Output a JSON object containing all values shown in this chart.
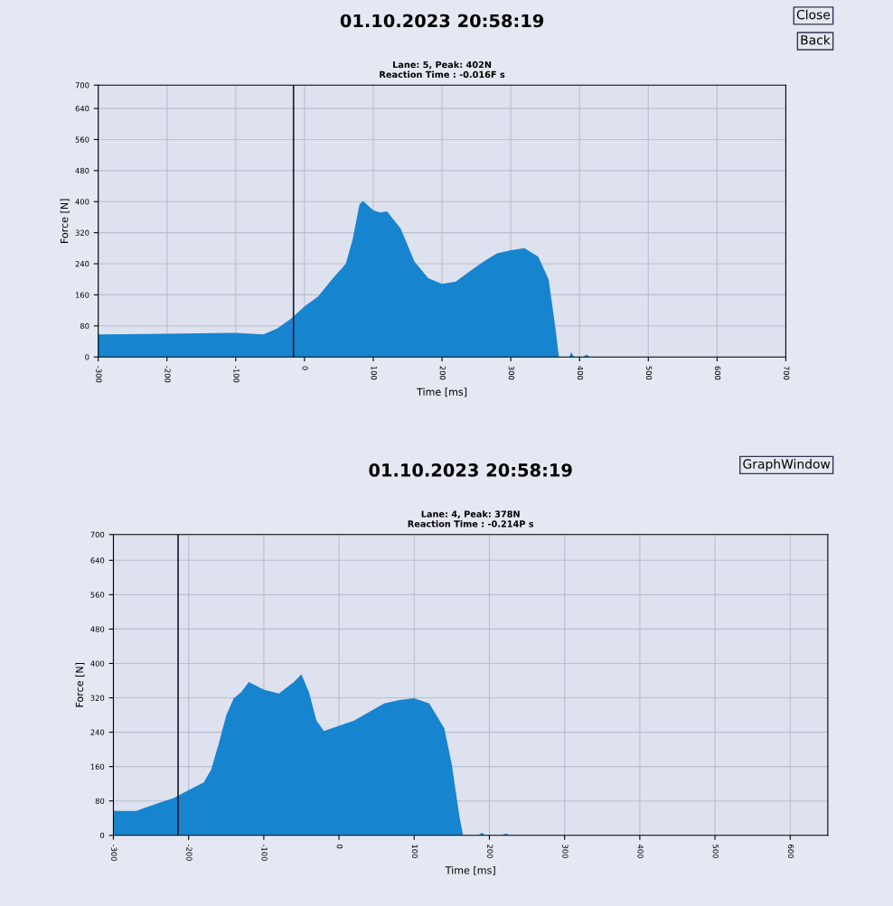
{
  "chart_data": [
    {
      "type": "area",
      "title": "01.10.2023 20:58:19",
      "subtitle": "Lane: 5, Peak: 402N\nReaction Time : -0.016F s",
      "xlabel": "Time [ms]",
      "ylabel": "Force [N]",
      "annotations": [
        "Close",
        "Back"
      ],
      "color": "#1784d0",
      "x": [
        -300,
        -200,
        -100,
        -60,
        -40,
        -20,
        0,
        20,
        40,
        60,
        70,
        80,
        85,
        100,
        110,
        120,
        140,
        160,
        180,
        200,
        220,
        240,
        260,
        280,
        300,
        320,
        340,
        355,
        365,
        370,
        380,
        385,
        388,
        392,
        400,
        405,
        410,
        415,
        430
      ],
      "values": [
        58,
        60,
        62,
        58,
        73,
        98,
        130,
        156,
        200,
        240,
        303,
        393,
        402,
        378,
        372,
        375,
        330,
        245,
        203,
        188,
        194,
        220,
        245,
        267,
        275,
        280,
        258,
        200,
        73,
        0,
        0,
        0,
        12,
        0,
        0,
        0,
        6,
        0,
        0
      ],
      "xlim": [
        -300,
        700
      ],
      "xticks": [
        -300,
        -200,
        -100,
        0,
        100,
        200,
        300,
        400,
        500,
        600,
        700
      ],
      "ylim": [
        0,
        700
      ],
      "yticks": [
        0,
        80,
        160,
        240,
        320,
        400,
        480,
        560,
        640,
        700
      ],
      "grid": true,
      "ref_lines": [
        {
          "axis": "x",
          "value": -16,
          "color": "#1c1c2a"
        }
      ]
    },
    {
      "type": "area",
      "title": "01.10.2023 20:58:19",
      "subtitle": "Lane: 4, Peak: 378N\nReaction Time : -0.214P s",
      "xlabel": "Time [ms]",
      "ylabel": "Force [N]",
      "annotations": [
        "GraphWindow"
      ],
      "color": "#1784d0",
      "x": [
        -300,
        -270,
        -240,
        -220,
        -200,
        -180,
        -170,
        -160,
        -150,
        -140,
        -130,
        -120,
        -100,
        -80,
        -60,
        -50,
        -40,
        -30,
        -20,
        0,
        20,
        40,
        60,
        80,
        100,
        120,
        140,
        150,
        160,
        165,
        180,
        185,
        190,
        195,
        215,
        222,
        228,
        240
      ],
      "values": [
        57,
        57,
        75,
        87,
        105,
        123,
        153,
        213,
        279,
        319,
        333,
        357,
        339,
        330,
        357,
        375,
        333,
        267,
        243,
        255,
        267,
        287,
        307,
        315,
        319,
        307,
        249,
        165,
        45,
        0,
        0,
        0,
        6,
        0,
        0,
        4,
        0,
        0
      ],
      "xlim": [
        -300,
        650
      ],
      "xticks": [
        -300,
        -200,
        -100,
        0,
        100,
        200,
        300,
        400,
        500,
        600
      ],
      "ylim": [
        0,
        700
      ],
      "yticks": [
        0,
        80,
        160,
        240,
        320,
        400,
        480,
        560,
        640,
        700
      ],
      "grid": true,
      "ref_lines": [
        {
          "axis": "x",
          "value": -214,
          "color": "#1c1c2a"
        }
      ]
    }
  ]
}
